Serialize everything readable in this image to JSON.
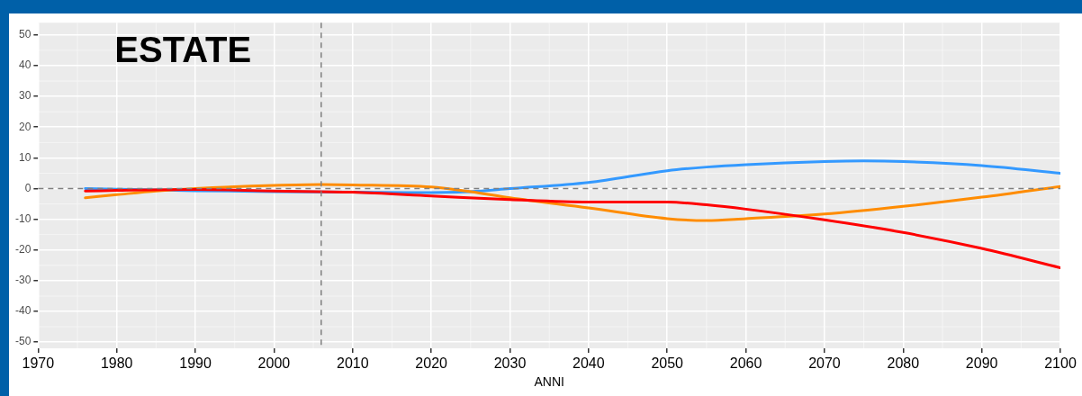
{
  "chart_data": {
    "type": "line",
    "title": "ESTATE",
    "xlabel": "ANNI",
    "xlim": [
      1970,
      2100
    ],
    "xticks": [
      1970,
      1980,
      1990,
      2000,
      2010,
      2020,
      2030,
      2040,
      2050,
      2060,
      2070,
      2080,
      2090,
      2100
    ],
    "ylim": [
      -52,
      54
    ],
    "yticks": [
      -50,
      -40,
      -30,
      -20,
      -10,
      0,
      10,
      20,
      30,
      40,
      50
    ],
    "grid": true,
    "legend": false,
    "marker": "none",
    "line_style": "solid",
    "ref_lines": [
      {
        "axis": "x",
        "value": 2006,
        "color": "#7f7f7f",
        "line_style": "dashed"
      },
      {
        "axis": "y",
        "value": 0,
        "color": "#7f7f7f",
        "line_style": "dashed"
      }
    ],
    "series": [
      {
        "color": "#3399ff",
        "x": [
          1976,
          1980,
          1990,
          2000,
          2010,
          2020,
          2025,
          2030,
          2040,
          2050,
          2055,
          2060,
          2070,
          2075,
          2080,
          2090,
          2100
        ],
        "values": [
          0,
          -0.2,
          -0.7,
          -1,
          -1.2,
          -1.3,
          -1,
          0,
          2,
          5.8,
          7,
          7.8,
          8.8,
          9,
          8.8,
          7.5,
          5
        ]
      },
      {
        "color": "#ff8c00",
        "x": [
          1976,
          1980,
          1985,
          1990,
          2000,
          2006,
          2010,
          2020,
          2025,
          2030,
          2040,
          2050,
          2055,
          2060,
          2070,
          2080,
          2090,
          2100
        ],
        "values": [
          -3,
          -2,
          -0.8,
          0,
          1,
          1.3,
          1.2,
          0.5,
          -1,
          -3,
          -6.3,
          -9.8,
          -10.4,
          -9.8,
          -8.3,
          -5.8,
          -2.8,
          0.7
        ]
      },
      {
        "color": "#ff0000",
        "x": [
          1976,
          1980,
          1990,
          2000,
          2010,
          2020,
          2030,
          2040,
          2050,
          2055,
          2060,
          2070,
          2080,
          2090,
          2100
        ],
        "values": [
          -0.8,
          -0.6,
          -0.3,
          -0.8,
          -1.2,
          -2.4,
          -3.6,
          -4.4,
          -4.4,
          -5.3,
          -6.7,
          -10.2,
          -14.3,
          -19.5,
          -25.8
        ]
      }
    ]
  }
}
